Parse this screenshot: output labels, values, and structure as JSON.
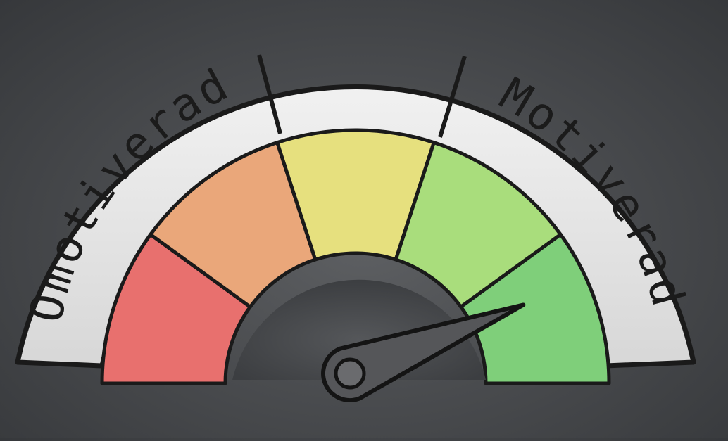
{
  "gauge": {
    "label_low": "Omotiverad",
    "label_high": "Motiverad",
    "segments": [
      {
        "name": "red",
        "color": "#e8706e"
      },
      {
        "name": "orange",
        "color": "#eaa77a"
      },
      {
        "name": "yellow",
        "color": "#e6e07e"
      },
      {
        "name": "light-green",
        "color": "#a9dd7c"
      },
      {
        "name": "green",
        "color": "#7fcf7a"
      }
    ],
    "needle_color": "#555659",
    "reading_fraction": 0.88
  }
}
